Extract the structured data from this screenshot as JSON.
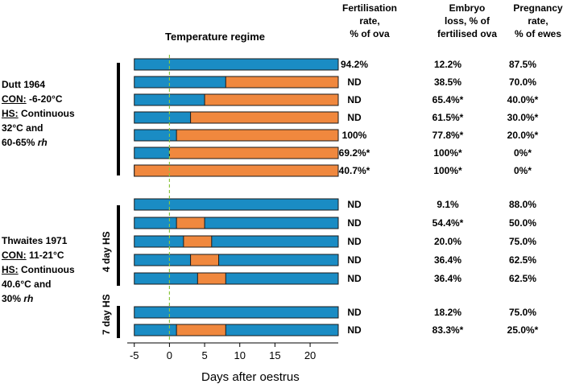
{
  "columns": [
    {
      "lines": [
        "Fertilisation",
        "rate,",
        "% of ova"
      ]
    },
    {
      "lines": [
        "Embryo",
        "loss, % of",
        "fertilised ova"
      ]
    },
    {
      "lines": [
        "Pregnancy",
        "rate,",
        "% of ewes"
      ]
    }
  ],
  "studies": [
    {
      "name": "Dutt 1964",
      "con_label": "CON:",
      "con_value": "-6-20°C",
      "hs_label": "HS:",
      "hs_lines": [
        "Continuous",
        "32°C and",
        "60-65% rh"
      ]
    },
    {
      "name": "Thwaites 1971",
      "con_label": "CON:",
      "con_value": "11-21°C",
      "hs_label": "HS:",
      "hs_lines": [
        "Continuous",
        "40.6°C and",
        "30% rh"
      ]
    }
  ],
  "group_labels": [
    "4 day HS",
    "7 day HS"
  ],
  "table_values": [
    [
      "94.2%",
      "12.2%",
      "87.5%"
    ],
    [
      "ND",
      "38.5%",
      "70.0%"
    ],
    [
      "ND",
      "65.4%*",
      "40.0%*"
    ],
    [
      "ND",
      "61.5%*",
      "30.0%*"
    ],
    [
      "100%",
      "77.8%*",
      "20.0%*"
    ],
    [
      "69.2%*",
      "100%*",
      "0%*"
    ],
    [
      "40.7%*",
      "100%*",
      "0%*"
    ],
    [
      "ND",
      "9.1%",
      "88.0%"
    ],
    [
      "ND",
      "54.4%*",
      "50.0%"
    ],
    [
      "ND",
      "20.0%",
      "75.0%"
    ],
    [
      "ND",
      "36.4%",
      "62.5%"
    ],
    [
      "ND",
      "36.4%",
      "62.5%"
    ],
    [
      "ND",
      "18.2%",
      "75.0%"
    ],
    [
      "ND",
      "83.3%*",
      "25.0%*"
    ]
  ],
  "chart_data": {
    "type": "bar",
    "orientation": "horizontal",
    "subtype": "gantt",
    "title": "Temperature regime",
    "xlabel": "Days after oestrus",
    "xlim": [
      -6,
      24
    ],
    "xticks": [
      -5,
      0,
      5,
      10,
      15,
      20
    ],
    "reference_line_x": 0,
    "colors": {
      "control": "#1a8cc4",
      "heat_stress": "#f0883e",
      "reference": "#8cc63f"
    },
    "series_names": [
      "Control",
      "Heat stress"
    ],
    "rows": [
      {
        "heat_start": null,
        "heat_end": null
      },
      {
        "heat_start": 8,
        "heat_end": 24
      },
      {
        "heat_start": 5,
        "heat_end": 24
      },
      {
        "heat_start": 3,
        "heat_end": 24
      },
      {
        "heat_start": 1,
        "heat_end": 24
      },
      {
        "heat_start": 0,
        "heat_end": 24
      },
      {
        "heat_start": -5,
        "heat_end": 24
      },
      {
        "heat_start": null,
        "heat_end": null
      },
      {
        "heat_start": 1,
        "heat_end": 5
      },
      {
        "heat_start": 2,
        "heat_end": 6
      },
      {
        "heat_start": 3,
        "heat_end": 7
      },
      {
        "heat_start": 4,
        "heat_end": 8
      },
      {
        "heat_start": null,
        "heat_end": null
      },
      {
        "heat_start": 1,
        "heat_end": 8
      }
    ]
  }
}
